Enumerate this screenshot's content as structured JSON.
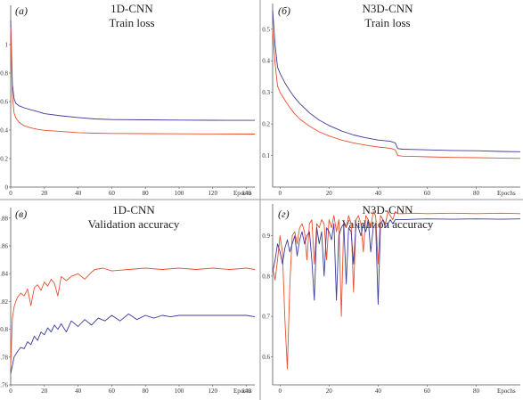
{
  "chart_data": [
    {
      "type": "line",
      "panel_label": "(a)",
      "title": "1D-CNN",
      "subtitle": "Train loss",
      "x_unit": "Epochs",
      "xlim": [
        0,
        145
      ],
      "ylim": [
        0,
        1.25
      ],
      "x_ticks": [
        "0",
        "20",
        "40",
        "60",
        "80",
        "100",
        "120",
        "140"
      ],
      "y_ticks": [
        "0",
        "0.2",
        "0.4",
        "0.6",
        "0.8",
        "1"
      ],
      "series": [
        {
          "color": "#3b3b9a",
          "x": [
            0,
            1,
            2,
            3,
            5,
            8,
            12,
            16,
            20,
            30,
            40,
            50,
            60,
            80,
            100,
            120,
            145
          ],
          "y": [
            1.17,
            0.72,
            0.62,
            0.588,
            0.57,
            0.556,
            0.542,
            0.53,
            0.515,
            0.5,
            0.488,
            0.478,
            0.474,
            0.472,
            0.47,
            0.469,
            0.468
          ]
        },
        {
          "color": "#e8502e",
          "x": [
            0,
            1,
            2,
            3,
            5,
            8,
            12,
            16,
            20,
            30,
            40,
            50,
            60,
            80,
            100,
            120,
            145
          ],
          "y": [
            1.12,
            0.64,
            0.52,
            0.485,
            0.455,
            0.43,
            0.415,
            0.405,
            0.398,
            0.39,
            0.382,
            0.378,
            0.376,
            0.375,
            0.374,
            0.373,
            0.372
          ]
        }
      ]
    },
    {
      "type": "line",
      "panel_label": "(б)",
      "title": "N3D-CNN",
      "subtitle": "Train loss",
      "x_unit": "Epochs",
      "xlim": [
        -3,
        98
      ],
      "ylim": [
        0,
        0.57
      ],
      "x_ticks": [
        "0",
        "20",
        "40",
        "60",
        "80"
      ],
      "y_ticks": [
        "0.1",
        "0.2",
        "0.3",
        "0.4",
        "0.5"
      ],
      "series": [
        {
          "color": "#3b3b9a",
          "x": [
            -3,
            -2,
            -1,
            0,
            2,
            4,
            6,
            8,
            12,
            16,
            20,
            25,
            30,
            35,
            40,
            45,
            47,
            48,
            50,
            55,
            60,
            70,
            80,
            90,
            98
          ],
          "y": [
            0.56,
            0.45,
            0.38,
            0.36,
            0.33,
            0.305,
            0.283,
            0.265,
            0.235,
            0.212,
            0.195,
            0.178,
            0.165,
            0.156,
            0.149,
            0.145,
            0.14,
            0.122,
            0.12,
            0.119,
            0.118,
            0.116,
            0.115,
            0.113,
            0.112
          ]
        },
        {
          "color": "#e8502e",
          "x": [
            -3,
            -2,
            -1,
            0,
            2,
            4,
            6,
            8,
            12,
            16,
            20,
            25,
            30,
            35,
            40,
            45,
            47,
            48,
            50,
            55,
            60,
            70,
            80,
            90,
            98
          ],
          "y": [
            0.5,
            0.39,
            0.32,
            0.3,
            0.275,
            0.252,
            0.232,
            0.216,
            0.193,
            0.175,
            0.162,
            0.149,
            0.14,
            0.133,
            0.127,
            0.123,
            0.118,
            0.1,
            0.098,
            0.097,
            0.096,
            0.094,
            0.093,
            0.092,
            0.091
          ]
        }
      ]
    },
    {
      "type": "line",
      "panel_label": "(в)",
      "title": "1D-CNN",
      "subtitle": "Validation accuracy",
      "x_unit": "Epochs",
      "xlim": [
        0,
        145
      ],
      "ylim": [
        0.76,
        0.885
      ],
      "x_ticks": [
        "0",
        "20",
        "40",
        "60",
        "80",
        "100",
        "120",
        "140"
      ],
      "y_ticks": [
        "0.76",
        "0.78",
        "0.8",
        "0.82",
        "0.84",
        "0.86",
        "0.88"
      ],
      "series": [
        {
          "color": "#e8502e",
          "x": [
            0,
            1,
            2,
            3,
            4,
            6,
            8,
            10,
            12,
            14,
            16,
            18,
            20,
            22,
            24,
            26,
            28,
            30,
            33,
            36,
            40,
            44,
            48,
            50,
            55,
            60,
            70,
            80,
            90,
            100,
            110,
            120,
            130,
            140,
            145
          ],
          "y": [
            0.774,
            0.808,
            0.816,
            0.82,
            0.823,
            0.826,
            0.824,
            0.829,
            0.817,
            0.83,
            0.832,
            0.828,
            0.834,
            0.831,
            0.836,
            0.833,
            0.824,
            0.838,
            0.835,
            0.838,
            0.84,
            0.836,
            0.841,
            0.843,
            0.844,
            0.842,
            0.843,
            0.844,
            0.843,
            0.844,
            0.843,
            0.844,
            0.843,
            0.844,
            0.843
          ]
        },
        {
          "color": "#3b3b9a",
          "x": [
            0,
            2,
            4,
            6,
            8,
            10,
            12,
            14,
            16,
            18,
            20,
            22,
            24,
            26,
            28,
            30,
            33,
            36,
            40,
            44,
            48,
            52,
            56,
            60,
            65,
            70,
            75,
            80,
            85,
            90,
            95,
            100,
            110,
            120,
            130,
            140,
            145
          ],
          "y": [
            0.768,
            0.78,
            0.784,
            0.787,
            0.786,
            0.791,
            0.789,
            0.795,
            0.792,
            0.798,
            0.796,
            0.801,
            0.798,
            0.803,
            0.8,
            0.804,
            0.798,
            0.806,
            0.802,
            0.807,
            0.803,
            0.808,
            0.806,
            0.81,
            0.806,
            0.811,
            0.807,
            0.81,
            0.808,
            0.81,
            0.809,
            0.81,
            0.81,
            0.81,
            0.81,
            0.81,
            0.809
          ]
        }
      ]
    },
    {
      "type": "line",
      "panel_label": "(г)",
      "title": "N3D-CNN",
      "subtitle": "Validation accuracy",
      "x_unit": "Epochs",
      "xlim": [
        -3,
        98
      ],
      "ylim": [
        0.53,
        0.97
      ],
      "x_ticks": [
        "0",
        "20",
        "40",
        "60",
        "80"
      ],
      "y_ticks": [
        "0.6",
        "0.7",
        "0.8",
        "0.9"
      ],
      "series": [
        {
          "color": "#e8502e",
          "x": [
            -3,
            -2,
            -1,
            0,
            1,
            2,
            3,
            4,
            5,
            6,
            7,
            8,
            9,
            10,
            11,
            12,
            13,
            14,
            15,
            16,
            17,
            18,
            19,
            20,
            21,
            22,
            23,
            24,
            25,
            26,
            27,
            28,
            29,
            30,
            31,
            32,
            33,
            34,
            35,
            36,
            37,
            38,
            39,
            40,
            41,
            42,
            43,
            44,
            45,
            46,
            47,
            48,
            50,
            55,
            60,
            70,
            80,
            90,
            98
          ],
          "y": [
            0.82,
            0.79,
            0.84,
            0.9,
            0.86,
            0.69,
            0.57,
            0.78,
            0.9,
            0.91,
            0.88,
            0.92,
            0.93,
            0.91,
            0.84,
            0.93,
            0.94,
            0.83,
            0.93,
            0.92,
            0.94,
            0.93,
            0.84,
            0.94,
            0.92,
            0.95,
            0.91,
            0.94,
            0.7,
            0.93,
            0.92,
            0.95,
            0.93,
            0.76,
            0.94,
            0.95,
            0.93,
            0.86,
            0.95,
            0.94,
            0.92,
            0.96,
            0.95,
            0.83,
            0.95,
            0.94,
            0.93,
            0.96,
            0.95,
            0.94,
            0.96,
            0.955,
            0.955,
            0.956,
            0.955,
            0.956,
            0.955,
            0.956,
            0.955
          ]
        },
        {
          "color": "#3b3b9a",
          "x": [
            -3,
            -2,
            -1,
            0,
            1,
            2,
            3,
            4,
            5,
            6,
            7,
            8,
            9,
            10,
            11,
            12,
            13,
            14,
            15,
            16,
            17,
            18,
            19,
            20,
            21,
            22,
            23,
            24,
            25,
            26,
            27,
            28,
            29,
            30,
            31,
            32,
            33,
            34,
            35,
            36,
            37,
            38,
            39,
            40,
            41,
            42,
            43,
            44,
            45,
            46,
            47,
            48,
            50,
            55,
            60,
            70,
            80,
            90,
            98
          ],
          "y": [
            0.81,
            0.84,
            0.88,
            0.86,
            0.83,
            0.87,
            0.89,
            0.86,
            0.88,
            0.9,
            0.85,
            0.89,
            0.91,
            0.88,
            0.9,
            0.91,
            0.84,
            0.74,
            0.92,
            0.88,
            0.91,
            0.8,
            0.92,
            0.91,
            0.89,
            0.93,
            0.74,
            0.9,
            0.92,
            0.93,
            0.78,
            0.92,
            0.91,
            0.83,
            0.93,
            0.92,
            0.9,
            0.93,
            0.91,
            0.94,
            0.86,
            0.92,
            0.93,
            0.73,
            0.93,
            0.94,
            0.92,
            0.93,
            0.94,
            0.93,
            0.94,
            0.94,
            0.94,
            0.941,
            0.942,
            0.941,
            0.942,
            0.941,
            0.942
          ]
        }
      ]
    }
  ]
}
